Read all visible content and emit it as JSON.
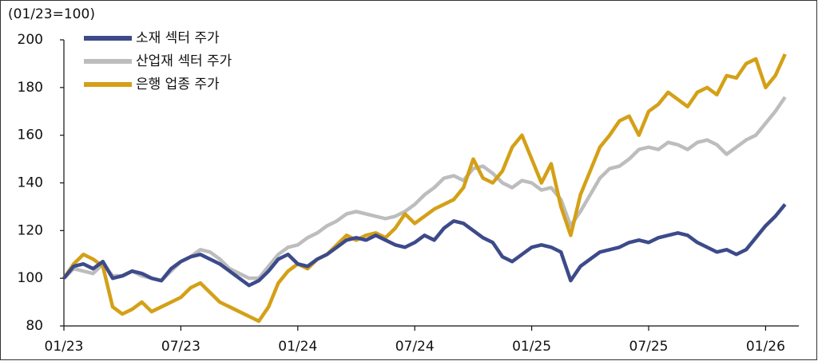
{
  "chart_data": {
    "type": "line",
    "y_unit_label": "(01/23=100)",
    "categories": [
      "01/23",
      null,
      null,
      null,
      null,
      null,
      null,
      null,
      null,
      null,
      null,
      null,
      "07/23",
      null,
      null,
      null,
      null,
      null,
      null,
      null,
      null,
      null,
      null,
      null,
      "01/24",
      null,
      null,
      null,
      null,
      null,
      null,
      null,
      null,
      null,
      null,
      null,
      "07/24",
      null,
      null,
      null,
      null,
      null,
      null,
      null,
      null,
      null,
      null,
      null,
      "01/25",
      null,
      null,
      null,
      null,
      null,
      null,
      null,
      null,
      null,
      null,
      null,
      "07/25",
      null,
      null,
      null,
      null,
      null,
      null,
      null,
      null,
      null,
      null,
      null,
      "01/26",
      null,
      null
    ],
    "series": [
      {
        "name": "산업재 섹터 주가",
        "color": "#bdbdbd",
        "values": [
          100,
          104,
          103,
          102,
          106,
          101,
          101,
          103,
          101,
          100,
          99,
          103,
          107,
          109,
          112,
          111,
          108,
          104,
          102,
          100,
          100,
          105,
          110,
          113,
          114,
          117,
          119,
          122,
          124,
          127,
          128,
          127,
          126,
          125,
          126,
          128,
          131,
          135,
          138,
          142,
          143,
          141,
          146,
          147,
          144,
          140,
          138,
          141,
          140,
          137,
          138,
          133,
          122,
          128,
          135,
          142,
          146,
          147,
          150,
          154,
          155,
          154,
          157,
          156,
          154,
          157,
          158,
          156,
          152,
          155,
          158,
          160,
          165,
          170,
          176
        ]
      },
      {
        "name": "은행 업종 주가",
        "color": "#d4a017",
        "values": [
          100,
          106,
          110,
          108,
          105,
          88,
          85,
          87,
          90,
          86,
          88,
          90,
          92,
          96,
          98,
          94,
          90,
          88,
          86,
          84,
          82,
          88,
          98,
          103,
          106,
          104,
          108,
          110,
          114,
          118,
          116,
          118,
          119,
          117,
          121,
          127,
          123,
          126,
          129,
          131,
          133,
          138,
          150,
          142,
          140,
          145,
          155,
          160,
          150,
          140,
          148,
          130,
          118,
          135,
          145,
          155,
          160,
          166,
          168,
          160,
          170,
          173,
          178,
          175,
          172,
          178,
          180,
          177,
          185,
          184,
          190,
          192,
          180,
          185,
          194
        ]
      },
      {
        "name": "소재 섹터 주가",
        "color": "#3d4a8a",
        "values": [
          100,
          105,
          106,
          104,
          107,
          100,
          101,
          103,
          102,
          100,
          99,
          104,
          107,
          109,
          110,
          108,
          106,
          103,
          100,
          97,
          99,
          103,
          108,
          110,
          106,
          105,
          108,
          110,
          113,
          116,
          117,
          116,
          118,
          116,
          114,
          113,
          115,
          118,
          116,
          121,
          124,
          123,
          120,
          117,
          115,
          109,
          107,
          110,
          113,
          114,
          113,
          111,
          99,
          105,
          108,
          111,
          112,
          113,
          115,
          116,
          115,
          117,
          118,
          119,
          118,
          115,
          113,
          111,
          112,
          110,
          112,
          117,
          122,
          126,
          131
        ]
      }
    ],
    "legend_order": [
      2,
      0,
      1
    ],
    "ylim": [
      80,
      200
    ],
    "yticks": [
      80,
      100,
      120,
      140,
      160,
      180,
      200
    ],
    "grid": false,
    "legend": "upper left"
  }
}
